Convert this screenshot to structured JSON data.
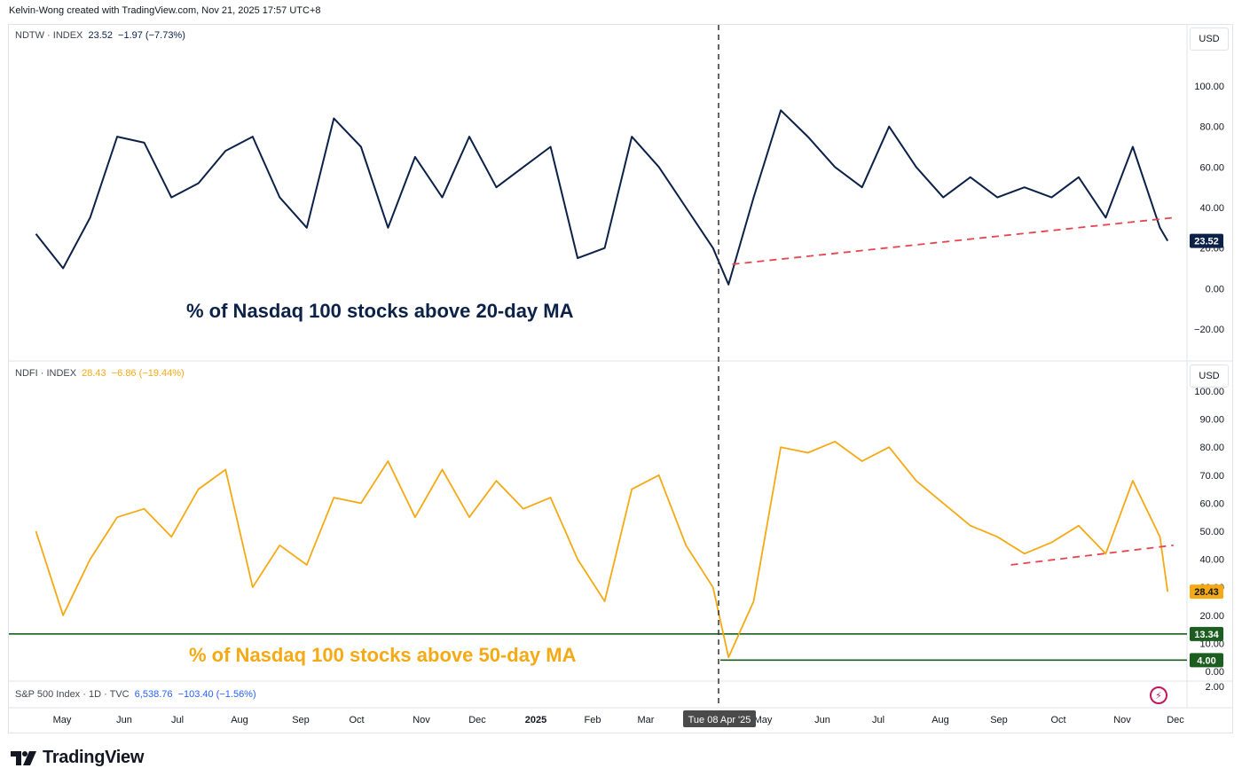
{
  "header": {
    "credit": "Kelvin-Wong created with TradingView.com, Nov 21, 2025 17:57 UTC+8"
  },
  "panes": {
    "top": {
      "legend": {
        "symbol": "NDTW · INDEX",
        "value": "23.52",
        "change": "−1.97 (−7.73%)"
      },
      "currency": "USD",
      "label": "% of Nasdaq 100 stocks above 20-day MA",
      "last_price_tag": "23.52"
    },
    "bottom": {
      "legend": {
        "symbol": "NDFI · INDEX",
        "value": "28.43",
        "change": "−6.86 (−19.44%)"
      },
      "currency": "USD",
      "label": "% of Nasdaq 100 stocks above 50-day MA",
      "last_price_tag": "28.43",
      "level_tags": [
        "13.34",
        "4.00"
      ]
    },
    "spx": {
      "legend": {
        "symbol": "S&P 500 Index · 1D · TVC",
        "value": "6,538.76",
        "change": "−103.40 (−1.56%)"
      },
      "axis_tick": "2.00"
    }
  },
  "time_axis": {
    "labels": [
      "May",
      "Jun",
      "Jul",
      "Aug",
      "Sep",
      "Oct",
      "Nov",
      "Dec",
      "2025",
      "Feb",
      "Mar",
      "May",
      "Jun",
      "Jul",
      "Aug",
      "Sep",
      "Oct",
      "Nov",
      "Dec"
    ],
    "crosshair_label": "Tue 08 Apr '25"
  },
  "branding": {
    "name": "TradingView"
  },
  "colors": {
    "ndtw_line": "#0c2148",
    "ndfi_line": "#f5a914",
    "trend_line": "#e8434f",
    "support_line": "#1b5e20",
    "crosshair": "#333333",
    "spx_legend": "#2962ff"
  },
  "chart_data": [
    {
      "type": "line",
      "symbol": "NDTW",
      "title": "% of Nasdaq 100 stocks above 20-day MA",
      "ylim": [
        -20,
        100
      ],
      "y_ticks": [
        "100.00",
        "80.00",
        "60.00",
        "40.00",
        "20.00",
        "0.00",
        "−20.00"
      ],
      "x": [
        "2024-04-15",
        "2024-04-29",
        "2024-05-13",
        "2024-05-27",
        "2024-06-10",
        "2024-06-24",
        "2024-07-08",
        "2024-07-22",
        "2024-08-05",
        "2024-08-19",
        "2024-09-02",
        "2024-09-16",
        "2024-09-30",
        "2024-10-14",
        "2024-10-28",
        "2024-11-11",
        "2024-11-25",
        "2024-12-09",
        "2024-12-23",
        "2025-01-06",
        "2025-01-20",
        "2025-02-03",
        "2025-02-17",
        "2025-03-03",
        "2025-03-17",
        "2025-03-31",
        "2025-04-08",
        "2025-04-21",
        "2025-05-05",
        "2025-05-19",
        "2025-06-02",
        "2025-06-16",
        "2025-06-30",
        "2025-07-14",
        "2025-07-28",
        "2025-08-11",
        "2025-08-25",
        "2025-09-08",
        "2025-09-22",
        "2025-10-06",
        "2025-10-20",
        "2025-11-03",
        "2025-11-17",
        "2025-11-21"
      ],
      "values": [
        27,
        10,
        35,
        75,
        72,
        45,
        52,
        68,
        75,
        45,
        30,
        84,
        70,
        30,
        65,
        45,
        75,
        50,
        60,
        70,
        15,
        20,
        75,
        60,
        40,
        20,
        2,
        45,
        88,
        75,
        60,
        50,
        80,
        60,
        45,
        55,
        45,
        50,
        45,
        55,
        35,
        70,
        30,
        23.52
      ],
      "annotations": [
        {
          "type": "trendline",
          "from": [
            "2025-04-10",
            12
          ],
          "to": [
            "2025-11-24",
            35
          ]
        }
      ]
    },
    {
      "type": "line",
      "symbol": "NDFI",
      "title": "% of Nasdaq 100 stocks above 50-day MA",
      "ylim": [
        0,
        100
      ],
      "y_ticks": [
        "100.00",
        "90.00",
        "80.00",
        "70.00",
        "60.00",
        "50.00",
        "40.00",
        "30.00",
        "20.00",
        "10.00",
        "0.00"
      ],
      "x": [
        "2024-04-15",
        "2024-04-29",
        "2024-05-13",
        "2024-05-27",
        "2024-06-10",
        "2024-06-24",
        "2024-07-08",
        "2024-07-22",
        "2024-08-05",
        "2024-08-19",
        "2024-09-02",
        "2024-09-16",
        "2024-09-30",
        "2024-10-14",
        "2024-10-28",
        "2024-11-11",
        "2024-11-25",
        "2024-12-09",
        "2024-12-23",
        "2025-01-06",
        "2025-01-20",
        "2025-02-03",
        "2025-02-17",
        "2025-03-03",
        "2025-03-17",
        "2025-03-31",
        "2025-04-08",
        "2025-04-21",
        "2025-05-05",
        "2025-05-19",
        "2025-06-02",
        "2025-06-16",
        "2025-06-30",
        "2025-07-14",
        "2025-07-28",
        "2025-08-11",
        "2025-08-25",
        "2025-09-08",
        "2025-09-22",
        "2025-10-06",
        "2025-10-20",
        "2025-11-03",
        "2025-11-17",
        "2025-11-21"
      ],
      "values": [
        50,
        20,
        40,
        55,
        58,
        48,
        65,
        72,
        30,
        45,
        38,
        62,
        60,
        75,
        55,
        72,
        55,
        68,
        58,
        62,
        40,
        25,
        65,
        70,
        45,
        30,
        5,
        25,
        80,
        78,
        82,
        75,
        80,
        68,
        60,
        52,
        48,
        42,
        46,
        52,
        42,
        68,
        48,
        28.43
      ],
      "annotations": [
        {
          "type": "trendline",
          "from": [
            "2025-09-01",
            38
          ],
          "to": [
            "2025-11-24",
            45
          ]
        },
        {
          "type": "hline",
          "value": 13.34
        },
        {
          "type": "hline",
          "value": 4.0
        }
      ]
    }
  ]
}
